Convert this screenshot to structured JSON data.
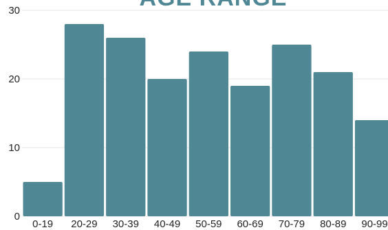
{
  "chart_data": {
    "type": "bar",
    "title": "AGE RANGE",
    "categories": [
      "0-19",
      "20-29",
      "30-39",
      "40-49",
      "50-59",
      "60-69",
      "70-79",
      "80-89",
      "90-99"
    ],
    "values": [
      5,
      28,
      26,
      20,
      24,
      19,
      25,
      21,
      14
    ],
    "ylim": [
      0,
      30
    ],
    "yticks": [
      0,
      10,
      20,
      30
    ],
    "grid": true,
    "bar_color": "#4f8794",
    "title_color": "#4f8794"
  }
}
